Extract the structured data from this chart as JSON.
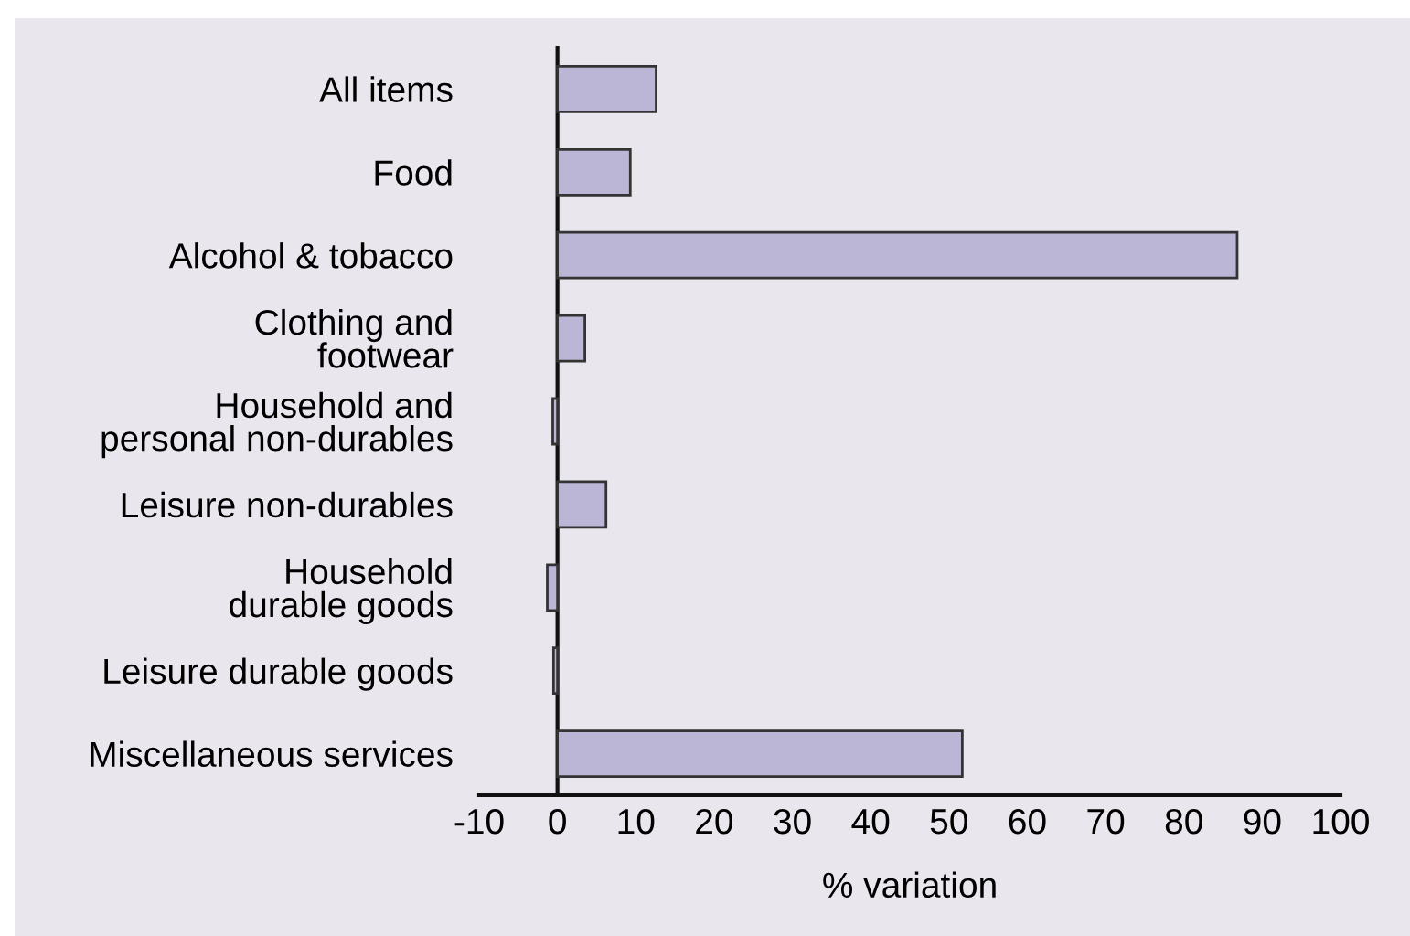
{
  "chart_data": {
    "type": "bar",
    "orientation": "horizontal",
    "categories": [
      "All items",
      "Food",
      "Alcohol & tobacco",
      "Clothing and\nfootwear",
      "Household and\npersonal non-durables",
      "Leisure non-durables",
      "Household\ndurable goods",
      "Leisure durable goods",
      "Miscellaneous services"
    ],
    "values": [
      12.6,
      9.3,
      86.8,
      3.5,
      -0.6,
      6.2,
      -1.3,
      -0.5,
      51.7
    ],
    "color": "#bcb6d6",
    "xlabel": "% variation",
    "xlim": [
      -10,
      100
    ],
    "xticks": [
      -10,
      0,
      10,
      20,
      30,
      40,
      50,
      60,
      70,
      80,
      90,
      100
    ]
  }
}
